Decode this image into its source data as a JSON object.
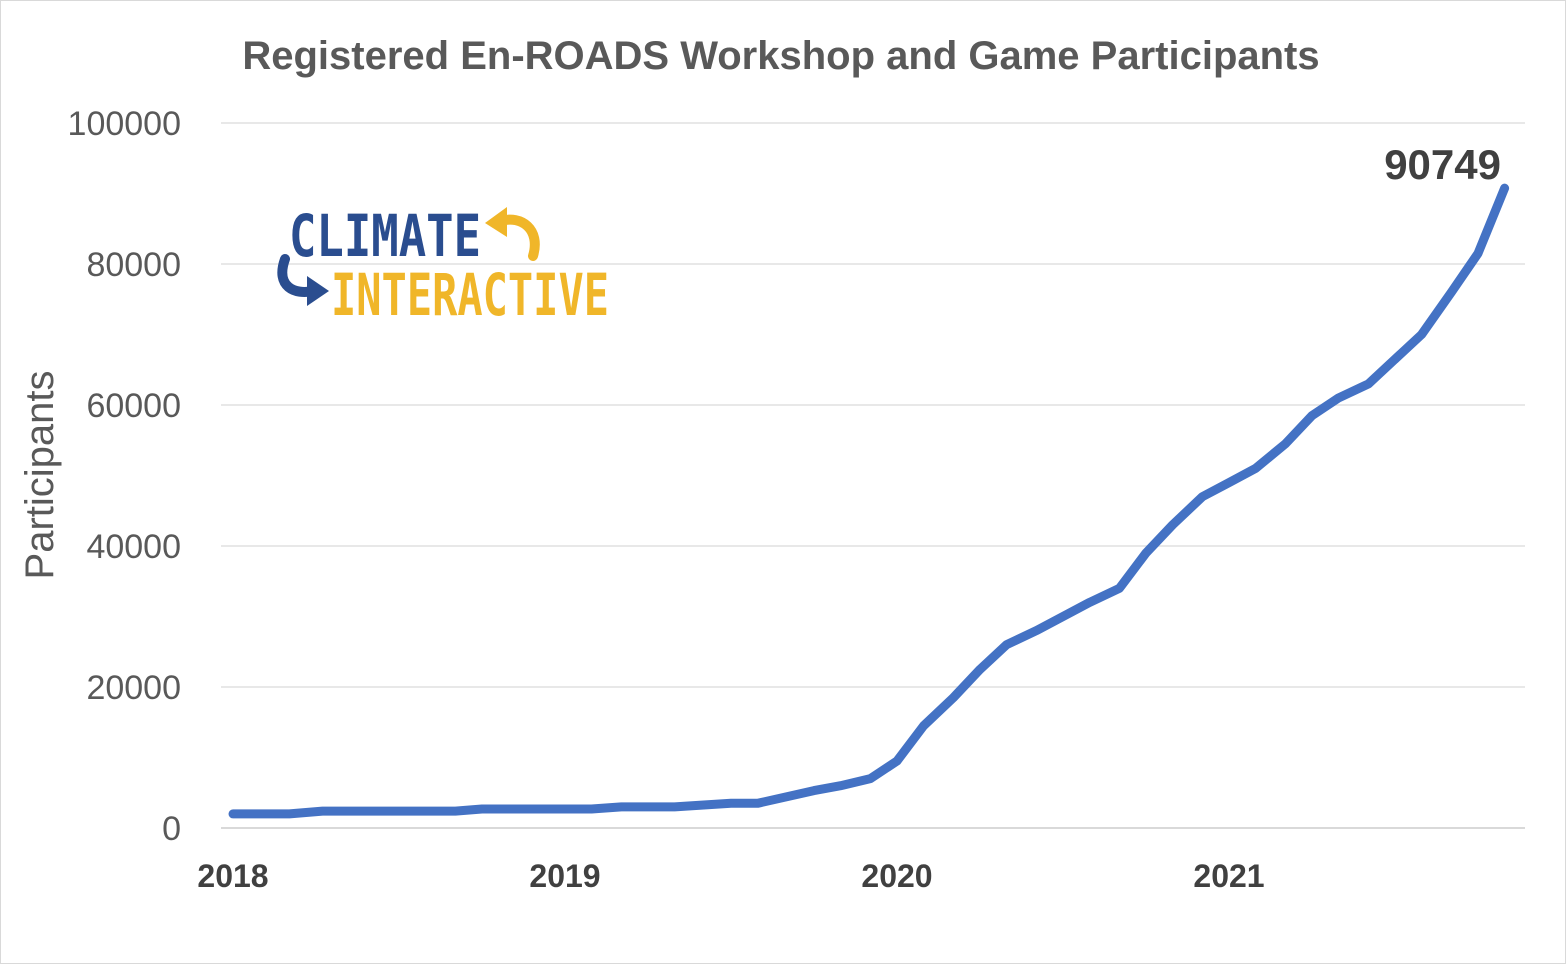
{
  "chart_data": {
    "type": "line",
    "title": "Registered En-ROADS Workshop and Game Participants",
    "ylabel": "Participants",
    "xlabel": "",
    "ylim": [
      0,
      100000
    ],
    "yticks": [
      "0",
      "20000",
      "40000",
      "60000",
      "80000",
      "100000"
    ],
    "xticks": [
      {
        "label": "2018",
        "x": 2018.0
      },
      {
        "label": "2019",
        "x": 2019.0
      },
      {
        "label": "2020",
        "x": 2020.0
      },
      {
        "label": "2021",
        "x": 2021.0
      }
    ],
    "xlim": [
      2018.0,
      2021.9
    ],
    "grid": true,
    "line_color": "#4472c4",
    "end_label": "90749",
    "series": [
      {
        "x": [
          2018.0,
          2018.17,
          2018.27,
          2018.5,
          2018.67,
          2018.75,
          2019.0,
          2019.08,
          2019.17,
          2019.33,
          2019.5,
          2019.58,
          2019.75,
          2019.83,
          2019.92,
          2020.0,
          2020.08,
          2020.17,
          2020.25,
          2020.33,
          2020.42,
          2020.5,
          2020.58,
          2020.67,
          2020.75,
          2020.83,
          2020.92,
          2021.0,
          2021.08,
          2021.17,
          2021.25,
          2021.33,
          2021.42,
          2021.5,
          2021.58,
          2021.67,
          2021.75,
          2021.83
        ],
        "values": [
          2000,
          2000,
          2400,
          2400,
          2400,
          2700,
          2700,
          2700,
          3000,
          3000,
          3500,
          3500,
          5300,
          6000,
          7000,
          9500,
          14500,
          18500,
          22500,
          26000,
          28000,
          30000,
          32000,
          34000,
          39000,
          43000,
          47000,
          49000,
          51000,
          54500,
          58500,
          61000,
          63000,
          66500,
          70000,
          76000,
          81500,
          90749
        ]
      }
    ]
  },
  "logo": {
    "line1": "CLIMATE",
    "line2": "INTERACTIVE",
    "color_blue": "#2a4d8f",
    "color_yellow": "#f0b629",
    "icon_top": "curved-arrow-left-icon",
    "icon_bottom": "curved-arrow-right-icon"
  }
}
